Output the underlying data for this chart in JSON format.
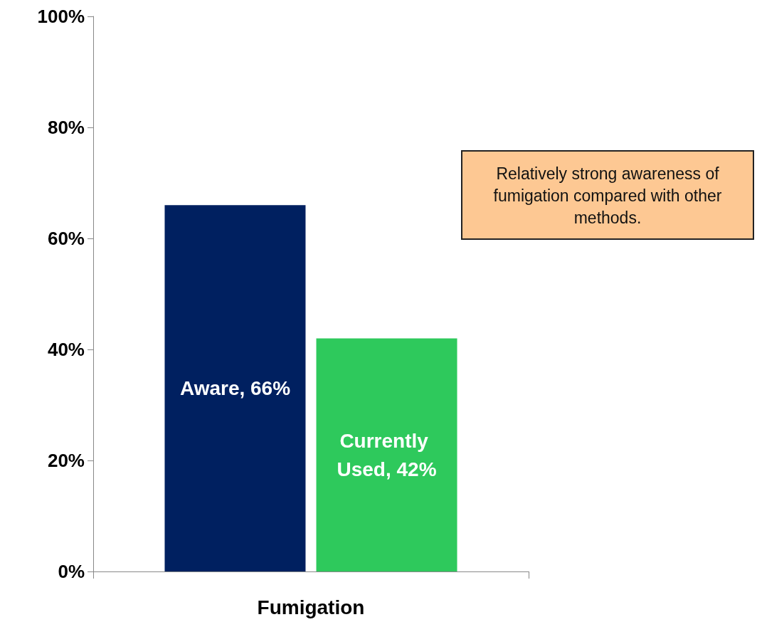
{
  "chart_data": {
    "type": "bar",
    "categories": [
      "Fumigation"
    ],
    "series": [
      {
        "color": "#002060",
        "values": [
          66
        ],
        "value_labels": [
          "Aware, 66%"
        ]
      },
      {
        "color": "#2ec95c",
        "values": [
          42
        ],
        "value_labels": [
          "Currently Used, 42%"
        ]
      }
    ],
    "ylim": [
      0,
      100
    ],
    "yticks": [
      {
        "value": 0,
        "label": "0%"
      },
      {
        "value": 20,
        "label": "20%"
      },
      {
        "value": 40,
        "label": "40%"
      },
      {
        "value": 60,
        "label": "60%"
      },
      {
        "value": 80,
        "label": "80%"
      },
      {
        "value": 100,
        "label": "100%"
      }
    ],
    "grid": false,
    "annotations": [
      "Relatively strong awareness of fumigation compared with other methods."
    ]
  }
}
